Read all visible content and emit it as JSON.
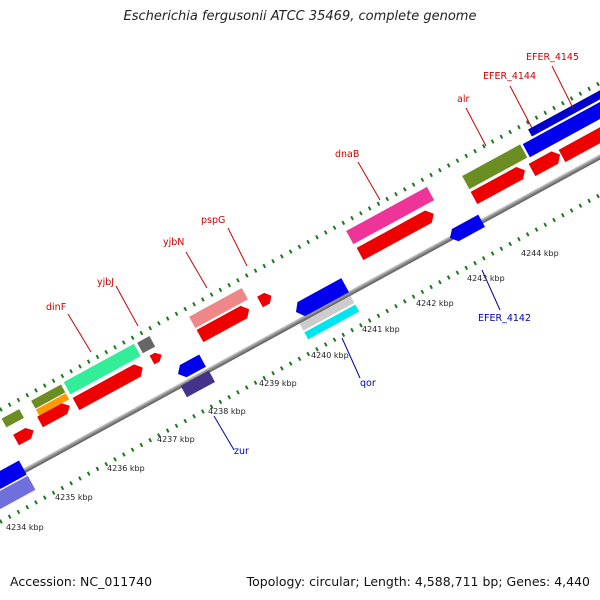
{
  "title": "Escherichia fergusonii ATCC 35469, complete genome",
  "footer": {
    "accession": "Accession: NC_011740",
    "summary": "Topology: circular; Length: 4,588,711 bp; Genes: 4,440"
  },
  "colors": {
    "backbone": "#8a8a8a",
    "tick": "#1a7a1a",
    "forward_label": "#cc0000",
    "reverse_label": "#0000aa",
    "coord_label": "#222222"
  },
  "coordinates": [
    "4234 kbp",
    "4235 kbp",
    "4236 kbp",
    "4237 kbp",
    "4238 kbp",
    "4239 kbp",
    "4240 kbp",
    "4241 kbp",
    "4242 kbp",
    "4243 kbp",
    "4244 kbp"
  ],
  "forward_gene_labels": [
    "dinF",
    "yjbJ",
    "yjbN",
    "pspG",
    "dnaB",
    "alr",
    "EFER_4144",
    "EFER_4145"
  ],
  "reverse_gene_labels": [
    "zur",
    "qor",
    "EFER_4142"
  ]
}
